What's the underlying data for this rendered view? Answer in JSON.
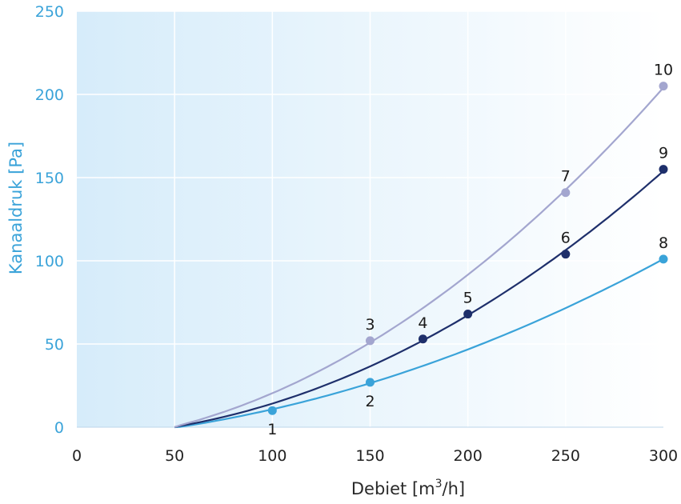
{
  "chart_data": {
    "type": "line",
    "title": "",
    "xlabel": "Debiet [m³/h]",
    "xlabel_main": "Debiet [m",
    "xlabel_sup": "3",
    "xlabel_tail": "/h]",
    "ylabel": "Kanaaldruk [Pa]",
    "xlim": [
      0,
      300
    ],
    "ylim": [
      0,
      250
    ],
    "x_ticks": [
      0,
      50,
      100,
      150,
      200,
      250,
      300
    ],
    "y_ticks": [
      0,
      50,
      100,
      150,
      200,
      250
    ],
    "grid": true,
    "background": {
      "gradient_from": "#d6ecfa",
      "gradient_to": "#ffffff"
    },
    "series": [
      {
        "color": "#3aa3d9",
        "start": [
          50,
          0
        ],
        "points": [
          {
            "x": 100,
            "y": 10,
            "label": "1"
          },
          {
            "x": 150,
            "y": 27,
            "label": "2"
          },
          {
            "x": 300,
            "y": 101,
            "label": "8"
          }
        ]
      },
      {
        "color": "#1e2f6b",
        "start": [
          50,
          0
        ],
        "points": [
          {
            "x": 177,
            "y": 53,
            "label": "4"
          },
          {
            "x": 200,
            "y": 68,
            "label": "5"
          },
          {
            "x": 250,
            "y": 104,
            "label": "6"
          },
          {
            "x": 300,
            "y": 155,
            "label": "9"
          }
        ]
      },
      {
        "color": "#a3a6cf",
        "start": [
          50,
          0
        ],
        "points": [
          {
            "x": 150,
            "y": 52,
            "label": "3"
          },
          {
            "x": 250,
            "y": 141,
            "label": "7"
          },
          {
            "x": 300,
            "y": 205,
            "label": "10"
          }
        ]
      }
    ]
  }
}
